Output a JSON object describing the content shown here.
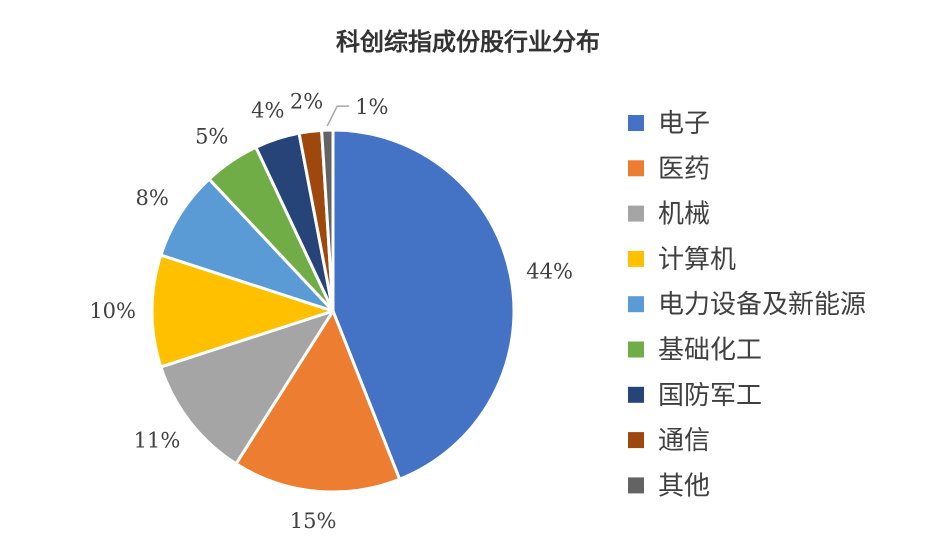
{
  "chart_data": {
    "type": "pie",
    "title": "科创综指成份股行业分布",
    "legend_position": "right",
    "slices": [
      {
        "name": "电子",
        "value": 44,
        "label": "44%",
        "color": "#4472C4"
      },
      {
        "name": "医药",
        "value": 15,
        "label": "15%",
        "color": "#ED7D31"
      },
      {
        "name": "机械",
        "value": 11,
        "label": "11%",
        "color": "#A5A5A5"
      },
      {
        "name": "计算机",
        "value": 10,
        "label": "10%",
        "color": "#FFC000"
      },
      {
        "name": "电力设备及新能源",
        "value": 8,
        "label": "8%",
        "color": "#5B9BD5"
      },
      {
        "name": "基础化工",
        "value": 5,
        "label": "5%",
        "color": "#70AD47"
      },
      {
        "name": "国防军工",
        "value": 4,
        "label": "4%",
        "color": "#264478"
      },
      {
        "name": "通信",
        "value": 2,
        "label": "2%",
        "color": "#9E480E"
      },
      {
        "name": "其他",
        "value": 1,
        "label": "1%",
        "color": "#636363"
      }
    ]
  }
}
